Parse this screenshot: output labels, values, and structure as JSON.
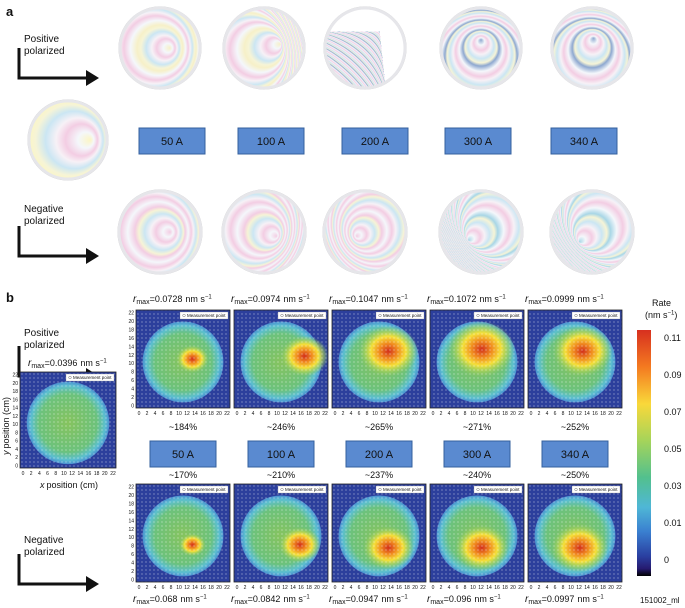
{
  "panel_a": {
    "label": "a",
    "positive": {
      "line1": "Positive",
      "line2": "polarized"
    },
    "negative": {
      "line1": "Negative",
      "line2": "polarized"
    },
    "currents": [
      "50 A",
      "100 A",
      "200 A",
      "300 A",
      "340 A"
    ]
  },
  "panel_b": {
    "label": "b",
    "positive": {
      "line1": "Positive",
      "line2": "polarized"
    },
    "negative": {
      "line1": "Negative",
      "line2": "polarized"
    },
    "currents": [
      "50 A",
      "100 A",
      "200 A",
      "300 A",
      "340 A"
    ],
    "rmax": {
      "symbol": "r",
      "subscript": "max",
      "unit": "nm s",
      "exponent": "−1"
    },
    "reference_rmax": "=0.0396",
    "top_rmax": [
      "=0.0728",
      "=0.0974",
      "=0.1047",
      "=0.1072",
      "=0.0999"
    ],
    "bottom_rmax": [
      "=0.068",
      "=0.0842",
      "=0.0947",
      "=0.096",
      "=0.0997"
    ],
    "top_enhancement": [
      "~184%",
      "~246%",
      "~265%",
      "~271%",
      "~252%"
    ],
    "bottom_enhancement": [
      "~170%",
      "~210%",
      "~237%",
      "~240%",
      "~250%"
    ],
    "axis_ticks": [
      0,
      2,
      4,
      6,
      8,
      10,
      12,
      14,
      16,
      18,
      20,
      22
    ],
    "y_axis_label": {
      "variable": "y",
      "text": "position (cm)"
    },
    "x_axis_label": {
      "variable": "x",
      "text": "position (cm)"
    },
    "legend": "Measurement point",
    "colorbar": {
      "title": "Rate",
      "unit_open": "(nm s",
      "exponent": "−1",
      "unit_close": ")",
      "ticks": [
        0.11,
        0.09,
        0.07,
        0.05,
        0.03,
        0.01,
        0
      ]
    },
    "figure_id": "151002_ml"
  }
}
